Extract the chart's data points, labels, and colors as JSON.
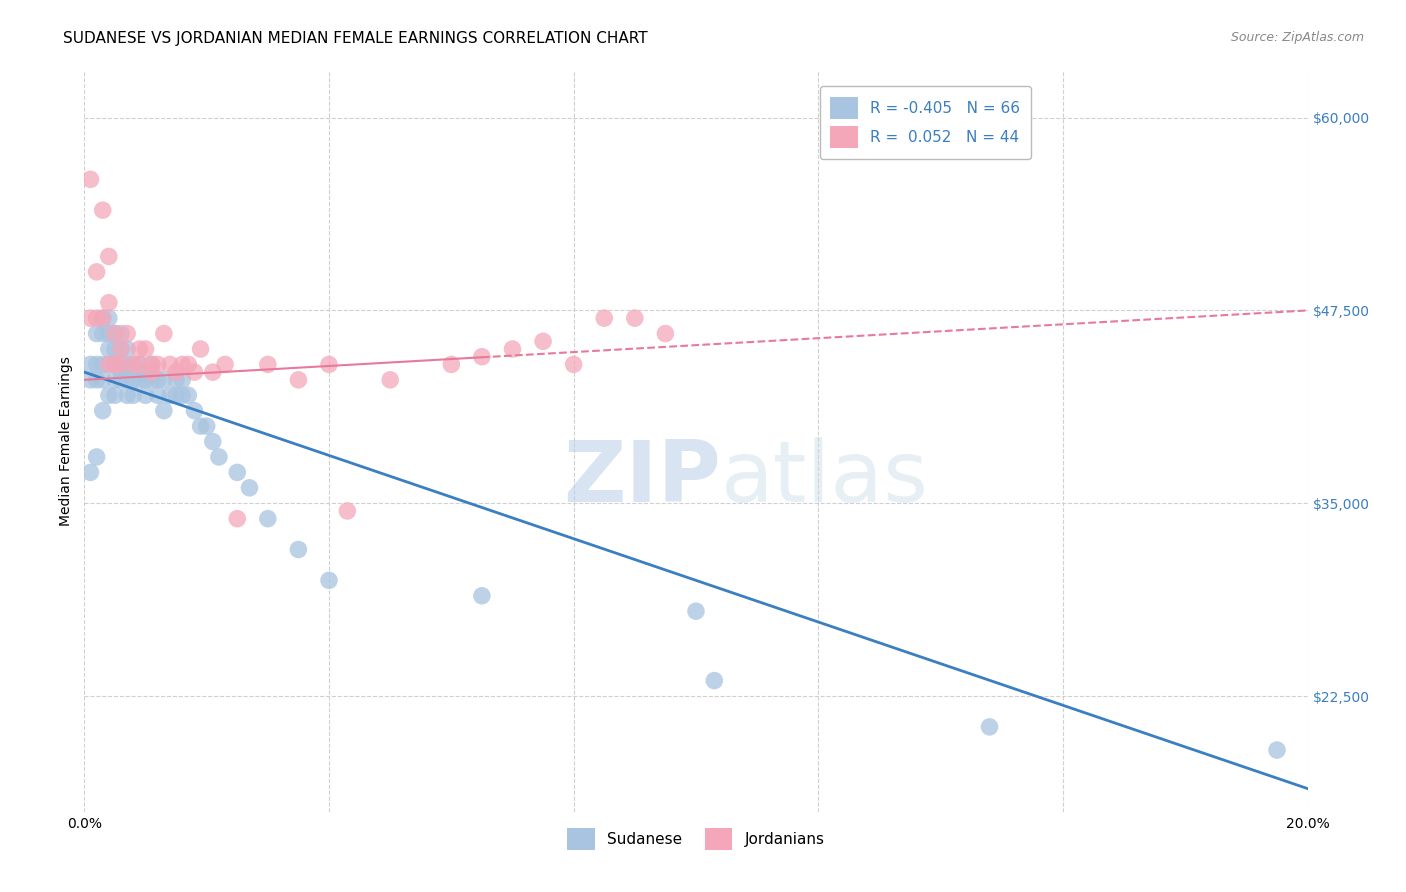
{
  "title": "SUDANESE VS JORDANIAN MEDIAN FEMALE EARNINGS CORRELATION CHART",
  "source": "Source: ZipAtlas.com",
  "ylabel": "Median Female Earnings",
  "watermark_zip": "ZIP",
  "watermark_atlas": "atlas",
  "xlim": [
    0.0,
    0.2
  ],
  "ylim": [
    15000,
    63000
  ],
  "xtick_pos": [
    0.0,
    0.04,
    0.08,
    0.12,
    0.16,
    0.2
  ],
  "xticklabels": [
    "0.0%",
    "",
    "",
    "",
    "",
    "20.0%"
  ],
  "ytick_positions": [
    22500,
    35000,
    47500,
    60000
  ],
  "ytick_labels": [
    "$22,500",
    "$35,000",
    "$47,500",
    "$60,000"
  ],
  "sudanese_color": "#a8c4e0",
  "jordanian_color": "#f4a7b9",
  "sudanese_line_color": "#3a7fc1",
  "jordanian_line_color": "#e8799a",
  "sudanese_R": -0.405,
  "sudanese_N": 66,
  "jordanian_R": 0.052,
  "jordanian_N": 44,
  "legend_label_sudanese": "Sudanese",
  "legend_label_jordanian": "Jordanians",
  "title_fontsize": 11,
  "source_fontsize": 9,
  "axis_label_fontsize": 10,
  "tick_fontsize": 10,
  "legend_fontsize": 11,
  "blue_line_y0": 43500,
  "blue_line_y1": 16500,
  "pink_line_y0": 43000,
  "pink_line_y1": 47500,
  "background_color": "#ffffff",
  "grid_color": "#d0d0d0",
  "sudanese_x": [
    0.001,
    0.001,
    0.001,
    0.002,
    0.002,
    0.002,
    0.002,
    0.003,
    0.003,
    0.003,
    0.003,
    0.003,
    0.004,
    0.004,
    0.004,
    0.004,
    0.004,
    0.005,
    0.005,
    0.005,
    0.005,
    0.005,
    0.006,
    0.006,
    0.006,
    0.006,
    0.006,
    0.007,
    0.007,
    0.007,
    0.007,
    0.008,
    0.008,
    0.008,
    0.009,
    0.009,
    0.01,
    0.01,
    0.01,
    0.011,
    0.011,
    0.012,
    0.012,
    0.013,
    0.013,
    0.014,
    0.015,
    0.015,
    0.016,
    0.016,
    0.017,
    0.018,
    0.019,
    0.02,
    0.021,
    0.022,
    0.025,
    0.027,
    0.03,
    0.035,
    0.04,
    0.065,
    0.1,
    0.103,
    0.148,
    0.195
  ],
  "sudanese_y": [
    44000,
    43000,
    37000,
    46000,
    44000,
    43000,
    38000,
    47000,
    46000,
    44000,
    43000,
    41000,
    47000,
    46000,
    45000,
    44000,
    42000,
    46000,
    45000,
    44000,
    43000,
    42000,
    46000,
    45000,
    44000,
    43500,
    43000,
    45000,
    44000,
    43000,
    42000,
    44000,
    43000,
    42000,
    44000,
    43000,
    43500,
    43000,
    42000,
    44000,
    43000,
    43000,
    42000,
    43000,
    41000,
    42000,
    43000,
    42000,
    43000,
    42000,
    42000,
    41000,
    40000,
    40000,
    39000,
    38000,
    37000,
    36000,
    34000,
    32000,
    30000,
    29000,
    28000,
    23500,
    20500,
    19000
  ],
  "jordanian_x": [
    0.001,
    0.001,
    0.002,
    0.002,
    0.003,
    0.003,
    0.004,
    0.004,
    0.004,
    0.005,
    0.005,
    0.006,
    0.006,
    0.007,
    0.008,
    0.009,
    0.009,
    0.01,
    0.011,
    0.011,
    0.012,
    0.013,
    0.014,
    0.015,
    0.016,
    0.017,
    0.018,
    0.019,
    0.021,
    0.023,
    0.025,
    0.03,
    0.035,
    0.04,
    0.043,
    0.05,
    0.06,
    0.065,
    0.07,
    0.075,
    0.08,
    0.085,
    0.09,
    0.095
  ],
  "jordanian_y": [
    56000,
    47000,
    50000,
    47000,
    54000,
    47000,
    51000,
    48000,
    44000,
    46000,
    44000,
    45000,
    44000,
    46000,
    44000,
    45000,
    44000,
    45000,
    44000,
    43500,
    44000,
    46000,
    44000,
    43500,
    44000,
    44000,
    43500,
    45000,
    43500,
    44000,
    34000,
    44000,
    43000,
    44000,
    34500,
    43000,
    44000,
    44500,
    45000,
    45500,
    44000,
    47000,
    47000,
    46000
  ]
}
